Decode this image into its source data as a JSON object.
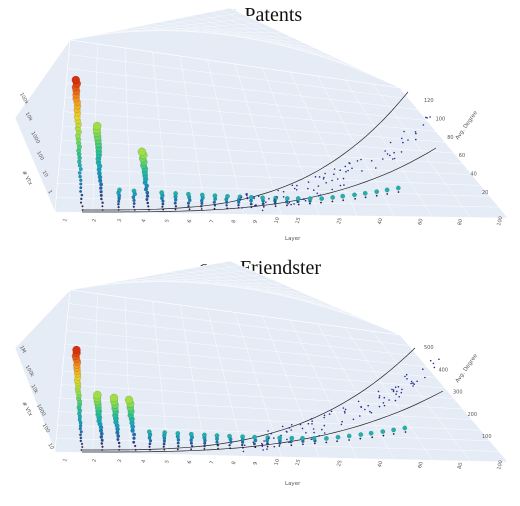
{
  "chart_data": [
    {
      "type": "scatter",
      "title": "cit-Patents",
      "xlabel": "Layer",
      "ylabel": "Avg. Degree",
      "zlabel": "# Vtx",
      "ylim": [
        0,
        125
      ],
      "ytick_labels": [
        "20",
        "40",
        "60",
        "80",
        "100",
        "120"
      ],
      "xtick_labels": [
        "1",
        "2",
        "3",
        "4",
        "5",
        "6",
        "7",
        "8",
        "9",
        "10",
        "15",
        "20",
        "25",
        "30",
        "40",
        "50",
        "60",
        "70",
        "80",
        "90",
        "100"
      ],
      "ztick_labels": [
        "100k",
        "10k",
        "1000",
        "100",
        "10",
        "1"
      ],
      "grid": true,
      "colorscale": [
        "#30123b",
        "#1f5fa8",
        "#17a2c4",
        "#2ec48f",
        "#8fe04b",
        "#e8d62b",
        "#f6931f",
        "#d6300e"
      ]
    },
    {
      "type": "scatter",
      "title": "com-Friendster",
      "xlabel": "Layer",
      "ylabel": "Avg. Degree",
      "zlabel": "# Vtx",
      "ylim": [
        0,
        520
      ],
      "ytick_labels": [
        "100",
        "200",
        "300",
        "400",
        "500"
      ],
      "xtick_labels": [
        "1",
        "2",
        "3",
        "4",
        "5",
        "6",
        "7",
        "8",
        "9",
        "10",
        "15",
        "20",
        "25",
        "30",
        "40",
        "50",
        "60",
        "70",
        "80",
        "90",
        "100"
      ],
      "ztick_labels": [
        "1M",
        "100k",
        "10k",
        "1000",
        "100",
        "10"
      ],
      "grid": true,
      "colorscale": [
        "#30123b",
        "#1f5fa8",
        "#17a2c4",
        "#2ec48f",
        "#8fe04b",
        "#e8d62b",
        "#f6931f",
        "#d6300e"
      ]
    }
  ]
}
